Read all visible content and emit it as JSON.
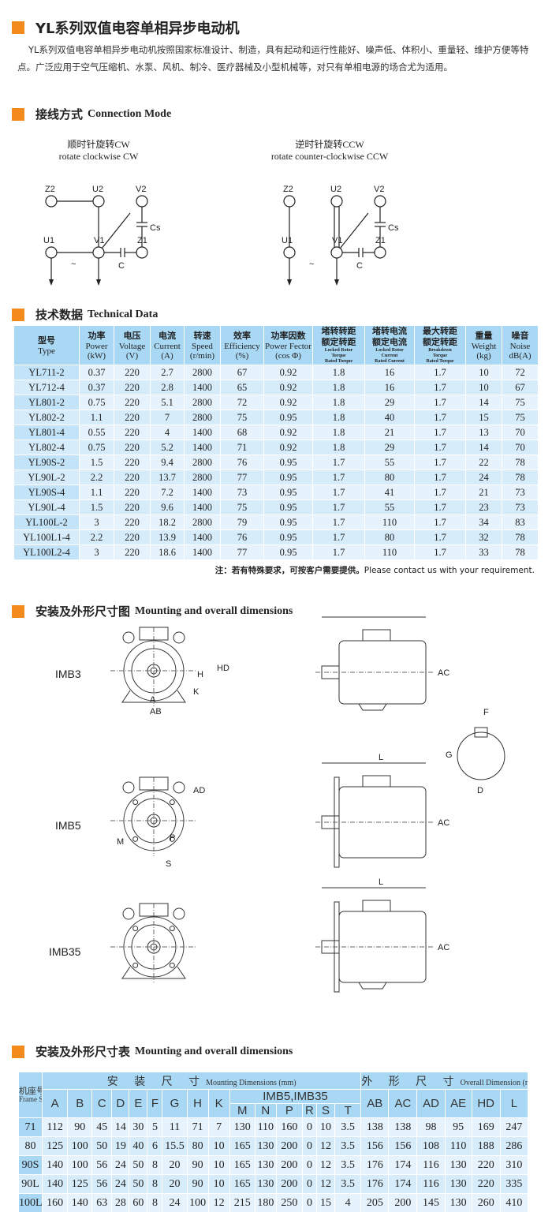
{
  "title": "YL系列双值电容单相异步电动机",
  "intro": "YL系列双值电容单相异步电动机按照国家标准设计、制造，具有起动和运行性能好、噪声低、体积小、重量轻、维护方便等特点。广泛应用于空气压缩机、水泵、风机、制冷、医疗器械及小型机械等，对只有单相电源的场合尤为适用。",
  "connection": {
    "cn": "接线方式",
    "en": "Connection Mode",
    "cw": {
      "cn": "顺时针旋转CW",
      "en": "rotate clockwise CW"
    },
    "ccw": {
      "cn": "逆时针旋转CCW",
      "en": "rotate counter-clockwise CCW"
    },
    "terminals": [
      "Z2",
      "U2",
      "V2",
      "U1",
      "V1",
      "Z1",
      "C",
      "Cs",
      "~"
    ]
  },
  "technical": {
    "cn": "技术数据",
    "en": "Technical Data",
    "headers": [
      {
        "cn": "型号",
        "en": "Type"
      },
      {
        "cn": "功率",
        "en": "Power",
        "unit": "(kW)"
      },
      {
        "cn": "电压",
        "en": "Voltage",
        "unit": "(V)"
      },
      {
        "cn": "电流",
        "en": "Current",
        "unit": "(A)"
      },
      {
        "cn": "转速",
        "en": "Speed",
        "unit": "(r/min)"
      },
      {
        "cn": "效率",
        "en": "Efficiency",
        "unit": "(%)"
      },
      {
        "cn": "功率因数",
        "en": "Power Fector",
        "unit": "(cos Φ)"
      },
      {
        "cn": "堵转转距",
        "cn2": "额定转距",
        "en": "Locked Rotor",
        "en2": "Torque",
        "en3": "Rated Torque"
      },
      {
        "cn": "堵转电流",
        "cn2": "额定电流",
        "en": "Locked Rotor",
        "en2": "Current",
        "en3": "Rated Current"
      },
      {
        "cn": "最大转距",
        "cn2": "额定转距",
        "en": "Breakdown",
        "en2": "Torque",
        "en3": "Rated Torque"
      },
      {
        "cn": "重量",
        "en": "Weight",
        "unit": "(kg)"
      },
      {
        "cn": "噪音",
        "en": "Noise",
        "unit": "dB(A)"
      }
    ],
    "rows": [
      [
        "YL711-2",
        "0.37",
        "220",
        "2.7",
        "2800",
        "67",
        "0.92",
        "1.8",
        "16",
        "1.7",
        "10",
        "72"
      ],
      [
        "YL712-4",
        "0.37",
        "220",
        "2.8",
        "1400",
        "65",
        "0.92",
        "1.8",
        "16",
        "1.7",
        "10",
        "67"
      ],
      [
        "YL801-2",
        "0.75",
        "220",
        "5.1",
        "2800",
        "72",
        "0.92",
        "1.8",
        "29",
        "1.7",
        "14",
        "75"
      ],
      [
        "YL802-2",
        "1.1",
        "220",
        "7",
        "2800",
        "75",
        "0.95",
        "1.8",
        "40",
        "1.7",
        "15",
        "75"
      ],
      [
        "YL801-4",
        "0.55",
        "220",
        "4",
        "1400",
        "68",
        "0.92",
        "1.8",
        "21",
        "1.7",
        "13",
        "70"
      ],
      [
        "YL802-4",
        "0.75",
        "220",
        "5.2",
        "1400",
        "71",
        "0.92",
        "1.8",
        "29",
        "1.7",
        "14",
        "70"
      ],
      [
        "YL90S-2",
        "1.5",
        "220",
        "9.4",
        "2800",
        "76",
        "0.95",
        "1.7",
        "55",
        "1.7",
        "22",
        "78"
      ],
      [
        "YL90L-2",
        "2.2",
        "220",
        "13.7",
        "2800",
        "77",
        "0.95",
        "1.7",
        "80",
        "1.7",
        "24",
        "78"
      ],
      [
        "YL90S-4",
        "1.1",
        "220",
        "7.2",
        "1400",
        "73",
        "0.95",
        "1.7",
        "41",
        "1.7",
        "21",
        "73"
      ],
      [
        "YL90L-4",
        "1.5",
        "220",
        "9.6",
        "1400",
        "75",
        "0.95",
        "1.7",
        "55",
        "1.7",
        "23",
        "73"
      ],
      [
        "YL100L-2",
        "3",
        "220",
        "18.2",
        "2800",
        "79",
        "0.95",
        "1.7",
        "110",
        "1.7",
        "34",
        "83"
      ],
      [
        "YL100L1-4",
        "2.2",
        "220",
        "13.9",
        "1400",
        "76",
        "0.95",
        "1.7",
        "80",
        "1.7",
        "32",
        "78"
      ],
      [
        "YL100L2-4",
        "3",
        "220",
        "18.6",
        "1400",
        "77",
        "0.95",
        "1.7",
        "110",
        "1.7",
        "33",
        "78"
      ]
    ],
    "note_cn": "注：若有特殊要求，可按客户需要提供。",
    "note_en": "Please contact us with your requirement."
  },
  "drawings": {
    "cn": "安装及外形尺寸图",
    "en": "Mounting and overall dimensions",
    "types": [
      "IMB3",
      "IMB5",
      "IMB35"
    ]
  },
  "dimensions": {
    "cn": "安装及外形尺寸表",
    "en": "Mounting and overall dimensions",
    "frame_cn": "机座号",
    "frame_en": "Frame Size",
    "mount_cn": "安 装 尺 寸",
    "mount_en": "Mounting Dimensions (mm)",
    "overall_cn": "外 形 尺 寸",
    "overall_en": "Overall Dimension (mm)",
    "imb": "IMB5,IMB35",
    "cols_a": [
      "A",
      "B",
      "C",
      "D",
      "E",
      "F",
      "G",
      "H",
      "K"
    ],
    "cols_b": [
      "M",
      "N",
      "P",
      "R",
      "S",
      "T"
    ],
    "cols_c": [
      "AB",
      "AC",
      "AD",
      "AE",
      "HD",
      "L"
    ],
    "rows": [
      [
        "71",
        "112",
        "90",
        "45",
        "14",
        "30",
        "5",
        "11",
        "71",
        "7",
        "130",
        "110",
        "160",
        "0",
        "10",
        "3.5",
        "138",
        "138",
        "98",
        "95",
        "169",
        "247"
      ],
      [
        "80",
        "125",
        "100",
        "50",
        "19",
        "40",
        "6",
        "15.5",
        "80",
        "10",
        "165",
        "130",
        "200",
        "0",
        "12",
        "3.5",
        "156",
        "156",
        "108",
        "110",
        "188",
        "286"
      ],
      [
        "90S",
        "140",
        "100",
        "56",
        "24",
        "50",
        "8",
        "20",
        "90",
        "10",
        "165",
        "130",
        "200",
        "0",
        "12",
        "3.5",
        "176",
        "174",
        "116",
        "130",
        "220",
        "310"
      ],
      [
        "90L",
        "140",
        "125",
        "56",
        "24",
        "50",
        "8",
        "20",
        "90",
        "10",
        "165",
        "130",
        "200",
        "0",
        "12",
        "3.5",
        "176",
        "174",
        "116",
        "130",
        "220",
        "335"
      ],
      [
        "100L",
        "160",
        "140",
        "63",
        "28",
        "60",
        "8",
        "24",
        "100",
        "12",
        "215",
        "180",
        "250",
        "0",
        "15",
        "4",
        "205",
        "200",
        "145",
        "130",
        "260",
        "410"
      ]
    ]
  },
  "colors": {
    "accent": "#f28a1e",
    "table_header": "#a9d8f5",
    "row_light": "#e6f3fc",
    "row_alt": "#d6ecfa"
  }
}
